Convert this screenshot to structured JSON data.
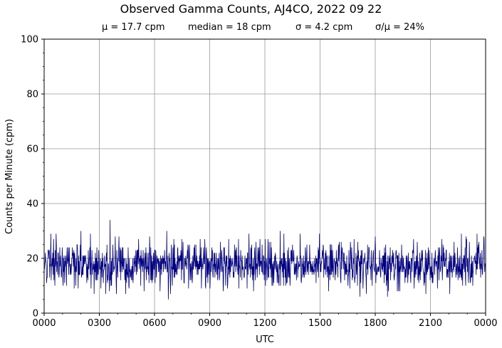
{
  "chart_data": {
    "type": "line",
    "title": "Observed Gamma Counts, AJ4CO, 2022 09 22",
    "subtitle": {
      "mean": "μ = 17.7 cpm",
      "median": "median = 18 cpm",
      "sigma": "σ = 4.2 cpm",
      "cv": "σ/μ = 24%"
    },
    "xlabel": "UTC",
    "ylabel": "Counts per Minute (cpm)",
    "x_ticks": [
      "0000",
      "0300",
      "0600",
      "0900",
      "1200",
      "1500",
      "1800",
      "2100",
      "0000"
    ],
    "y_ticks": [
      "0",
      "20",
      "40",
      "60",
      "80",
      "100"
    ],
    "xlim": [
      "00:00",
      "24:00"
    ],
    "ylim": [
      0,
      100
    ],
    "grid": true,
    "series": [
      {
        "color": "#000080",
        "sampling_interval_minutes": 1,
        "minutes": 1440,
        "mean": 17.7,
        "median": 18,
        "stdev": 4.2,
        "min": 5,
        "max": 34,
        "notable_peaks": [
          {
            "x": "03:35",
            "y": 34
          },
          {
            "x": "02:00",
            "y": 30
          },
          {
            "x": "06:40",
            "y": 30
          },
          {
            "x": "12:50",
            "y": 30
          },
          {
            "x": "18:00",
            "y": 28
          }
        ],
        "notable_dips": [
          {
            "x": "06:45",
            "y": 5
          },
          {
            "x": "17:10",
            "y": 6
          },
          {
            "x": "18:40",
            "y": 6
          }
        ]
      }
    ]
  }
}
